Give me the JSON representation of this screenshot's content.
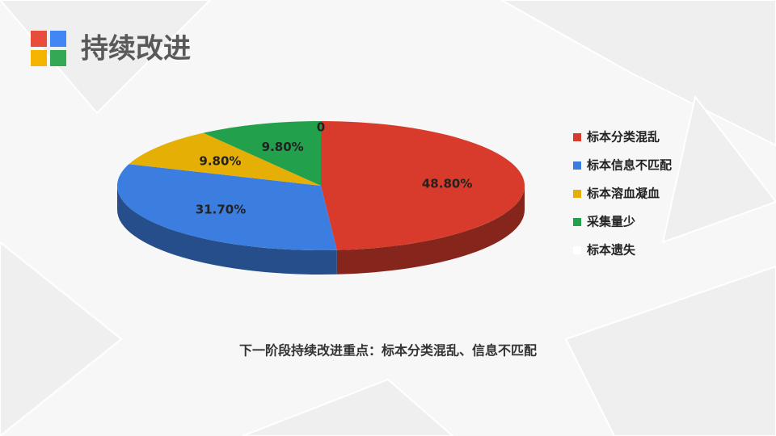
{
  "slide_title": "持续改进",
  "note": "下一阶段持续改进重点：标本分类混乱、信息不匹配",
  "chart_data": {
    "type": "pie3d",
    "categories": [
      "标本分类混乱",
      "标本信息不匹配",
      "标本溶血凝血",
      "采集量少",
      "标本遗失"
    ],
    "values": [
      48.8,
      31.7,
      9.8,
      9.8,
      0
    ],
    "value_labels": [
      "48.80%",
      "31.70%",
      "9.80%",
      "9.80%",
      "0"
    ],
    "colors": [
      "#d83b2c",
      "#3b7ee0",
      "#e5af05",
      "#22a04b",
      "#ffffff"
    ],
    "legend": "right"
  }
}
